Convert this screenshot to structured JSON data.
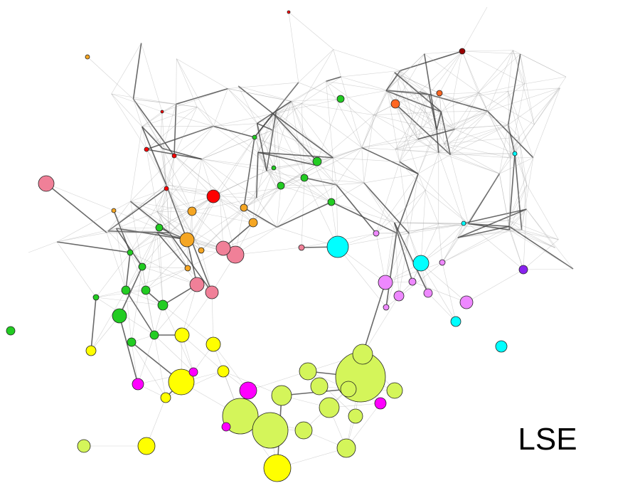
{
  "label": "LSE"
}
